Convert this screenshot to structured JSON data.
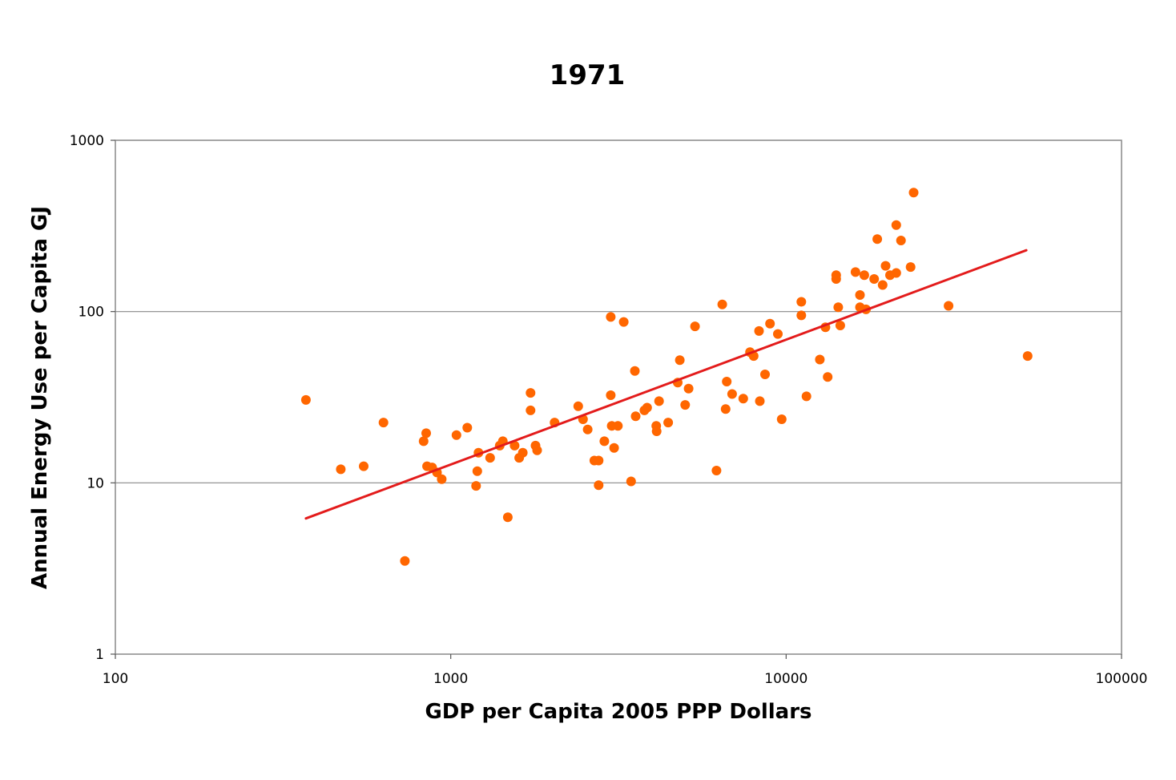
{
  "chart_data": {
    "type": "scatter",
    "title": "1971",
    "xlabel": "GDP per Capita 2005 PPP Dollars",
    "ylabel": "Annual Energy Use per Capita GJ",
    "x_scale": "log",
    "y_scale": "log",
    "xlim": [
      100,
      100000
    ],
    "ylim": [
      1,
      1000
    ],
    "x_ticks": [
      "100",
      "1000",
      "10000",
      "100000"
    ],
    "y_ticks": [
      "1",
      "10",
      "100",
      "1000"
    ],
    "grid": "horizontal major",
    "marker_color": "#ff6600",
    "trendline_color": "#e31b1b",
    "trendline": {
      "x": [
        370,
        52000
      ],
      "y": [
        6.2,
        228
      ]
    },
    "points": [
      {
        "x": 370,
        "y": 30.5
      },
      {
        "x": 470,
        "y": 12.0
      },
      {
        "x": 550,
        "y": 12.5
      },
      {
        "x": 630,
        "y": 22.5
      },
      {
        "x": 730,
        "y": 3.5
      },
      {
        "x": 830,
        "y": 17.5
      },
      {
        "x": 845,
        "y": 19.5
      },
      {
        "x": 850,
        "y": 12.5
      },
      {
        "x": 880,
        "y": 12.3
      },
      {
        "x": 910,
        "y": 11.5
      },
      {
        "x": 940,
        "y": 10.5
      },
      {
        "x": 1040,
        "y": 19.0
      },
      {
        "x": 1120,
        "y": 21.0
      },
      {
        "x": 1190,
        "y": 9.6
      },
      {
        "x": 1200,
        "y": 11.7
      },
      {
        "x": 1210,
        "y": 15.0
      },
      {
        "x": 1310,
        "y": 14.0
      },
      {
        "x": 1400,
        "y": 16.5
      },
      {
        "x": 1430,
        "y": 17.5
      },
      {
        "x": 1480,
        "y": 6.3
      },
      {
        "x": 1550,
        "y": 16.5
      },
      {
        "x": 1600,
        "y": 14.0
      },
      {
        "x": 1640,
        "y": 15.0
      },
      {
        "x": 1730,
        "y": 33.5
      },
      {
        "x": 1730,
        "y": 26.5
      },
      {
        "x": 1790,
        "y": 16.5
      },
      {
        "x": 1810,
        "y": 15.5
      },
      {
        "x": 2040,
        "y": 22.5
      },
      {
        "x": 2400,
        "y": 28.0
      },
      {
        "x": 2480,
        "y": 23.5
      },
      {
        "x": 2560,
        "y": 20.5
      },
      {
        "x": 2680,
        "y": 13.5
      },
      {
        "x": 2760,
        "y": 13.5
      },
      {
        "x": 2760,
        "y": 9.7
      },
      {
        "x": 2870,
        "y": 17.5
      },
      {
        "x": 3000,
        "y": 93.0
      },
      {
        "x": 3000,
        "y": 32.5
      },
      {
        "x": 3020,
        "y": 21.5
      },
      {
        "x": 3070,
        "y": 16.0
      },
      {
        "x": 3150,
        "y": 21.5
      },
      {
        "x": 3280,
        "y": 87.0
      },
      {
        "x": 3450,
        "y": 10.2
      },
      {
        "x": 3540,
        "y": 45.0
      },
      {
        "x": 3560,
        "y": 24.5
      },
      {
        "x": 3780,
        "y": 26.5
      },
      {
        "x": 3850,
        "y": 27.5
      },
      {
        "x": 4100,
        "y": 21.5
      },
      {
        "x": 4110,
        "y": 20.0
      },
      {
        "x": 4180,
        "y": 30.0
      },
      {
        "x": 4450,
        "y": 22.5
      },
      {
        "x": 4750,
        "y": 38.5
      },
      {
        "x": 4820,
        "y": 52.0
      },
      {
        "x": 5000,
        "y": 28.5
      },
      {
        "x": 5120,
        "y": 35.5
      },
      {
        "x": 5350,
        "y": 82.0
      },
      {
        "x": 6200,
        "y": 11.8
      },
      {
        "x": 6450,
        "y": 110.0
      },
      {
        "x": 6600,
        "y": 27.0
      },
      {
        "x": 6650,
        "y": 39.0
      },
      {
        "x": 6900,
        "y": 33.0
      },
      {
        "x": 7450,
        "y": 31.0
      },
      {
        "x": 7800,
        "y": 58.0
      },
      {
        "x": 8000,
        "y": 55.0
      },
      {
        "x": 8300,
        "y": 77.0
      },
      {
        "x": 8350,
        "y": 30.0
      },
      {
        "x": 8650,
        "y": 43.0
      },
      {
        "x": 8950,
        "y": 85.0
      },
      {
        "x": 9450,
        "y": 74.0
      },
      {
        "x": 9700,
        "y": 23.5
      },
      {
        "x": 11100,
        "y": 114.0
      },
      {
        "x": 11100,
        "y": 95.0
      },
      {
        "x": 11500,
        "y": 32.0
      },
      {
        "x": 12600,
        "y": 52.5
      },
      {
        "x": 13100,
        "y": 81.0
      },
      {
        "x": 13300,
        "y": 41.5
      },
      {
        "x": 14100,
        "y": 163.0
      },
      {
        "x": 14100,
        "y": 155.0
      },
      {
        "x": 14300,
        "y": 106.0
      },
      {
        "x": 14500,
        "y": 83.0
      },
      {
        "x": 16100,
        "y": 170.0
      },
      {
        "x": 16600,
        "y": 125.0
      },
      {
        "x": 16600,
        "y": 106.0
      },
      {
        "x": 17100,
        "y": 163.0
      },
      {
        "x": 17300,
        "y": 103.0
      },
      {
        "x": 18300,
        "y": 155.0
      },
      {
        "x": 18700,
        "y": 265.0
      },
      {
        "x": 19400,
        "y": 143.0
      },
      {
        "x": 19800,
        "y": 185.0
      },
      {
        "x": 20400,
        "y": 163.0
      },
      {
        "x": 21300,
        "y": 320.0
      },
      {
        "x": 21300,
        "y": 168.0
      },
      {
        "x": 22000,
        "y": 260.0
      },
      {
        "x": 23500,
        "y": 182.0
      },
      {
        "x": 24000,
        "y": 495.0
      },
      {
        "x": 30500,
        "y": 108.0
      },
      {
        "x": 52500,
        "y": 55.0
      }
    ]
  }
}
